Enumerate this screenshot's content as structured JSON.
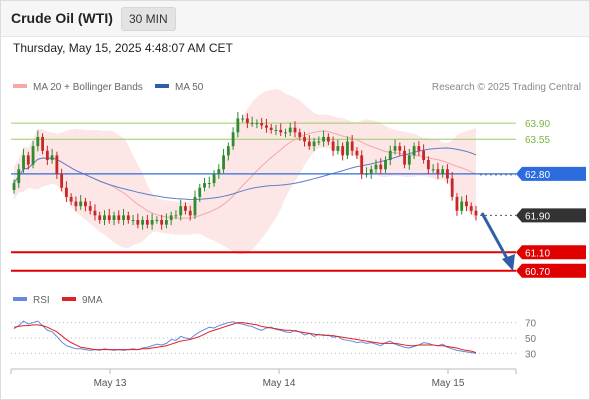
{
  "header": {
    "title": "Crude Oil (WTI)",
    "timeframe": "30 MIN"
  },
  "timestamp": "Thursday, May 15, 2025 4:48:07 AM CET",
  "legend": {
    "bb_label": "MA 20 + Bollinger Bands",
    "ma50_label": "MA 50",
    "credit": "Research © 2025 Trading Central"
  },
  "rsi_legend": {
    "rsi_label": "RSI",
    "ma_label": "9MA"
  },
  "colors": {
    "resistance": "#9ccc65",
    "pivot": "#2d6cdf",
    "support": "#e00000",
    "last_price": "#333333",
    "candle_up": "#2e8b2e",
    "candle_down": "#c62828",
    "ma50": "#5b7fc7",
    "bb_fill": "#fde0e0",
    "bb_mid": "#f4a8a8",
    "rsi": "#6688dd",
    "rsi_ma": "#dd2222",
    "arrow": "#2e5fa8"
  },
  "chart_data": [
    {
      "type": "candlestick",
      "x_axis_labels": [
        "May 13",
        "May 14",
        "May 15"
      ],
      "y_range": [
        60.5,
        64.4
      ],
      "levels": [
        {
          "value": 63.9,
          "label": "63.90",
          "kind": "resistance"
        },
        {
          "value": 63.55,
          "label": "63.55",
          "kind": "resistance"
        },
        {
          "value": 62.8,
          "label": "62.80",
          "kind": "pivot"
        },
        {
          "value": 61.9,
          "label": "61.90",
          "kind": "last"
        },
        {
          "value": 61.1,
          "label": "61.10",
          "kind": "support"
        },
        {
          "value": 60.7,
          "label": "60.70",
          "kind": "support"
        }
      ],
      "close": [
        62.6,
        62.9,
        63.2,
        63.0,
        63.4,
        63.6,
        63.3,
        63.1,
        63.2,
        62.8,
        62.5,
        62.3,
        62.2,
        62.1,
        62.2,
        62.1,
        62.0,
        61.9,
        61.8,
        61.9,
        61.8,
        61.9,
        61.8,
        61.9,
        61.8,
        61.8,
        61.7,
        61.8,
        61.7,
        61.8,
        61.8,
        61.7,
        61.8,
        61.9,
        61.9,
        62.1,
        62.0,
        61.9,
        62.3,
        62.5,
        62.6,
        62.6,
        62.8,
        62.9,
        63.2,
        63.4,
        63.7,
        64.0,
        64.0,
        63.9,
        63.9,
        63.9,
        63.85,
        63.8,
        63.75,
        63.75,
        63.7,
        63.7,
        63.8,
        63.7,
        63.6,
        63.5,
        63.4,
        63.5,
        63.5,
        63.6,
        63.5,
        63.3,
        63.4,
        63.2,
        63.5,
        63.3,
        63.2,
        62.8,
        62.8,
        62.9,
        63.0,
        62.9,
        63.1,
        63.3,
        63.4,
        63.3,
        63.0,
        63.2,
        63.4,
        63.3,
        63.1,
        62.9,
        62.9,
        62.8,
        62.9,
        62.7,
        62.3,
        62.0,
        62.2,
        62.1,
        62.0,
        61.9
      ],
      "series": [
        {
          "name": "MA 20 + Bollinger Bands"
        },
        {
          "name": "MA 50"
        }
      ]
    },
    {
      "type": "line",
      "title": "RSI",
      "y_ticks": [
        70,
        50,
        30
      ],
      "y_range": [
        15,
        85
      ],
      "series": [
        {
          "name": "RSI",
          "values": [
            62,
            66,
            72,
            68,
            70,
            72,
            66,
            60,
            58,
            52,
            45,
            40,
            38,
            36,
            36,
            35,
            34,
            35,
            34,
            36,
            35,
            34,
            35,
            34,
            35,
            36,
            35,
            37,
            38,
            40,
            42,
            41,
            43,
            48,
            47,
            52,
            50,
            49,
            54,
            58,
            61,
            64,
            63,
            66,
            68,
            70,
            71,
            69,
            68,
            66,
            65,
            62,
            60,
            63,
            64,
            61,
            60,
            58,
            57,
            60,
            58,
            54,
            56,
            52,
            55,
            53,
            54,
            51,
            52,
            48,
            47,
            46,
            44,
            45,
            43,
            44,
            42,
            40,
            44,
            46,
            42,
            40,
            38,
            37,
            39,
            41,
            44,
            43,
            41,
            40,
            42,
            38,
            36,
            34,
            33,
            32,
            31,
            30
          ]
        },
        {
          "name": "9MA",
          "values": [
            64,
            65,
            66,
            66,
            67,
            67,
            66,
            64,
            61,
            58,
            53,
            48,
            44,
            41,
            38,
            37,
            36,
            35,
            35,
            35,
            35,
            35,
            35,
            35,
            35,
            35,
            35,
            36,
            36,
            37,
            38,
            39,
            40,
            42,
            44,
            46,
            47,
            48,
            50,
            52,
            55,
            58,
            60,
            62,
            64,
            66,
            68,
            70,
            70,
            69,
            68,
            67,
            65,
            64,
            63,
            62,
            61,
            60,
            60,
            59,
            58,
            57,
            56,
            55,
            54,
            54,
            53,
            53,
            52,
            51,
            50,
            49,
            48,
            47,
            46,
            45,
            44,
            43,
            43,
            43,
            43,
            42,
            41,
            40,
            40,
            41,
            41,
            41,
            41,
            40,
            40,
            39,
            38,
            37,
            35,
            34,
            33,
            31
          ]
        }
      ]
    }
  ]
}
